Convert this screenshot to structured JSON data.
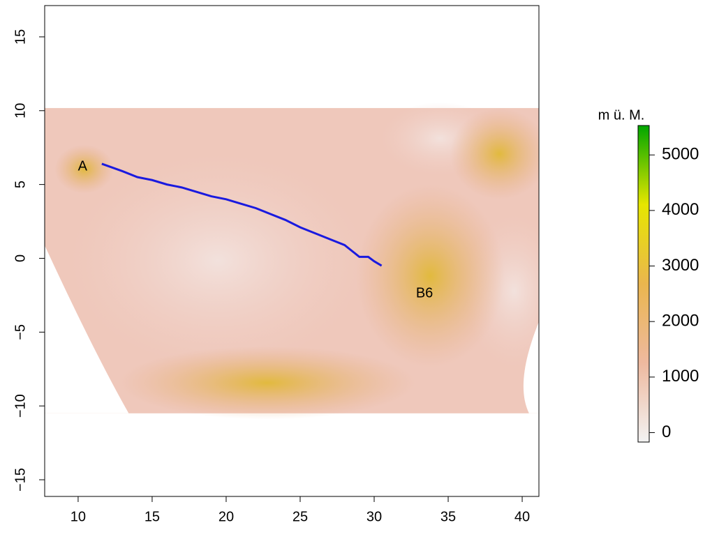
{
  "chart_data": {
    "type": "map",
    "xlim": [
      7.74,
      41.13
    ],
    "ylim": [
      -16.13,
      17.12
    ],
    "xticks": [
      10,
      15,
      20,
      25,
      30,
      35,
      40
    ],
    "yticks": [
      {
        "value": -15,
        "label": "−15"
      },
      {
        "value": -10,
        "label": "−10"
      },
      {
        "value": -5,
        "label": "−5"
      },
      0,
      5,
      10,
      15
    ],
    "raster_extent": {
      "x": [
        7.74,
        41.13
      ],
      "y": [
        -10.5,
        10.18
      ]
    },
    "series": [
      {
        "color": "#1a1adf",
        "x": [
          11.6,
          13,
          14,
          15,
          16,
          17,
          18,
          19,
          20,
          21,
          22,
          23,
          24,
          25,
          26,
          27,
          28,
          29,
          29.6,
          30,
          30.5
        ],
        "y": [
          6.4,
          5.9,
          5.5,
          5.3,
          5.0,
          4.8,
          4.5,
          4.2,
          4.0,
          3.7,
          3.4,
          3.0,
          2.6,
          2.1,
          1.7,
          1.3,
          0.9,
          0.1,
          0.1,
          -0.2,
          -0.5
        ]
      }
    ],
    "annotations": [
      {
        "text": "A",
        "x": 10.3,
        "y": 6.2
      },
      {
        "text": "B6",
        "x": 33.4,
        "y": -2.4
      }
    ],
    "colorbar": {
      "title": "m ü. M.",
      "lim": [
        -170,
        5530
      ],
      "ticks": [
        0,
        1000,
        2000,
        3000,
        4000,
        5000
      ],
      "colors": [
        "#F2F2F2",
        "#EEB99F",
        "#EAB64E",
        "#E6E600",
        "#00A600"
      ]
    }
  }
}
